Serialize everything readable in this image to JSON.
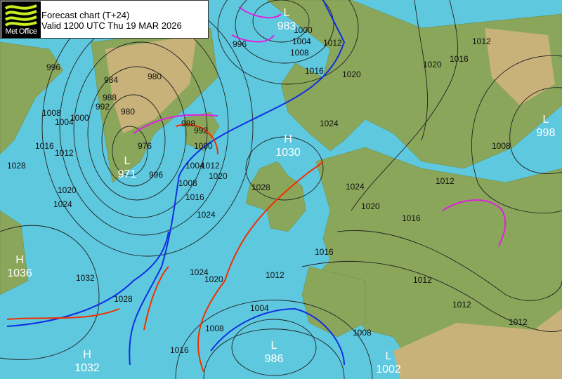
{
  "header": {
    "brand": "Met Office",
    "title": "Forecast chart (T+24)",
    "valid": "Valid 1200 UTC Thu 19 MAR 2026"
  },
  "colors": {
    "sea": "#5ec8df",
    "land": "#8aa65a",
    "cold_front": "#1030e0",
    "warm_front": "#f03000",
    "occluded_front": "#e020e0"
  },
  "pressure_centres": [
    {
      "type": "L",
      "value": "983"
    },
    {
      "type": "L",
      "value": "971"
    },
    {
      "type": "H",
      "value": "1030"
    },
    {
      "type": "L",
      "value": "998"
    },
    {
      "type": "H",
      "value": "1036"
    },
    {
      "type": "H",
      "value": "1032"
    },
    {
      "type": "L",
      "value": "986"
    },
    {
      "type": "L",
      "value": "1002"
    }
  ],
  "isobar_labels": [
    "996",
    "1008",
    "1004",
    "1000",
    "1016",
    "1012",
    "1028",
    "1020",
    "1024",
    "984",
    "988",
    "992",
    "980",
    "980",
    "976",
    "996",
    "988",
    "992",
    "1000",
    "1004",
    "1008",
    "1012",
    "1016",
    "1020",
    "1024",
    "996",
    "1000",
    "1004",
    "1008",
    "1016",
    "1012",
    "1020",
    "1024",
    "1028",
    "1024",
    "1020",
    "1016",
    "1016",
    "1012",
    "1024",
    "1020",
    "1032",
    "1028",
    "1004",
    "1008",
    "1016",
    "1008",
    "1012",
    "1012",
    "1012",
    "1012",
    "1008",
    "1016",
    "1020",
    "1012"
  ]
}
